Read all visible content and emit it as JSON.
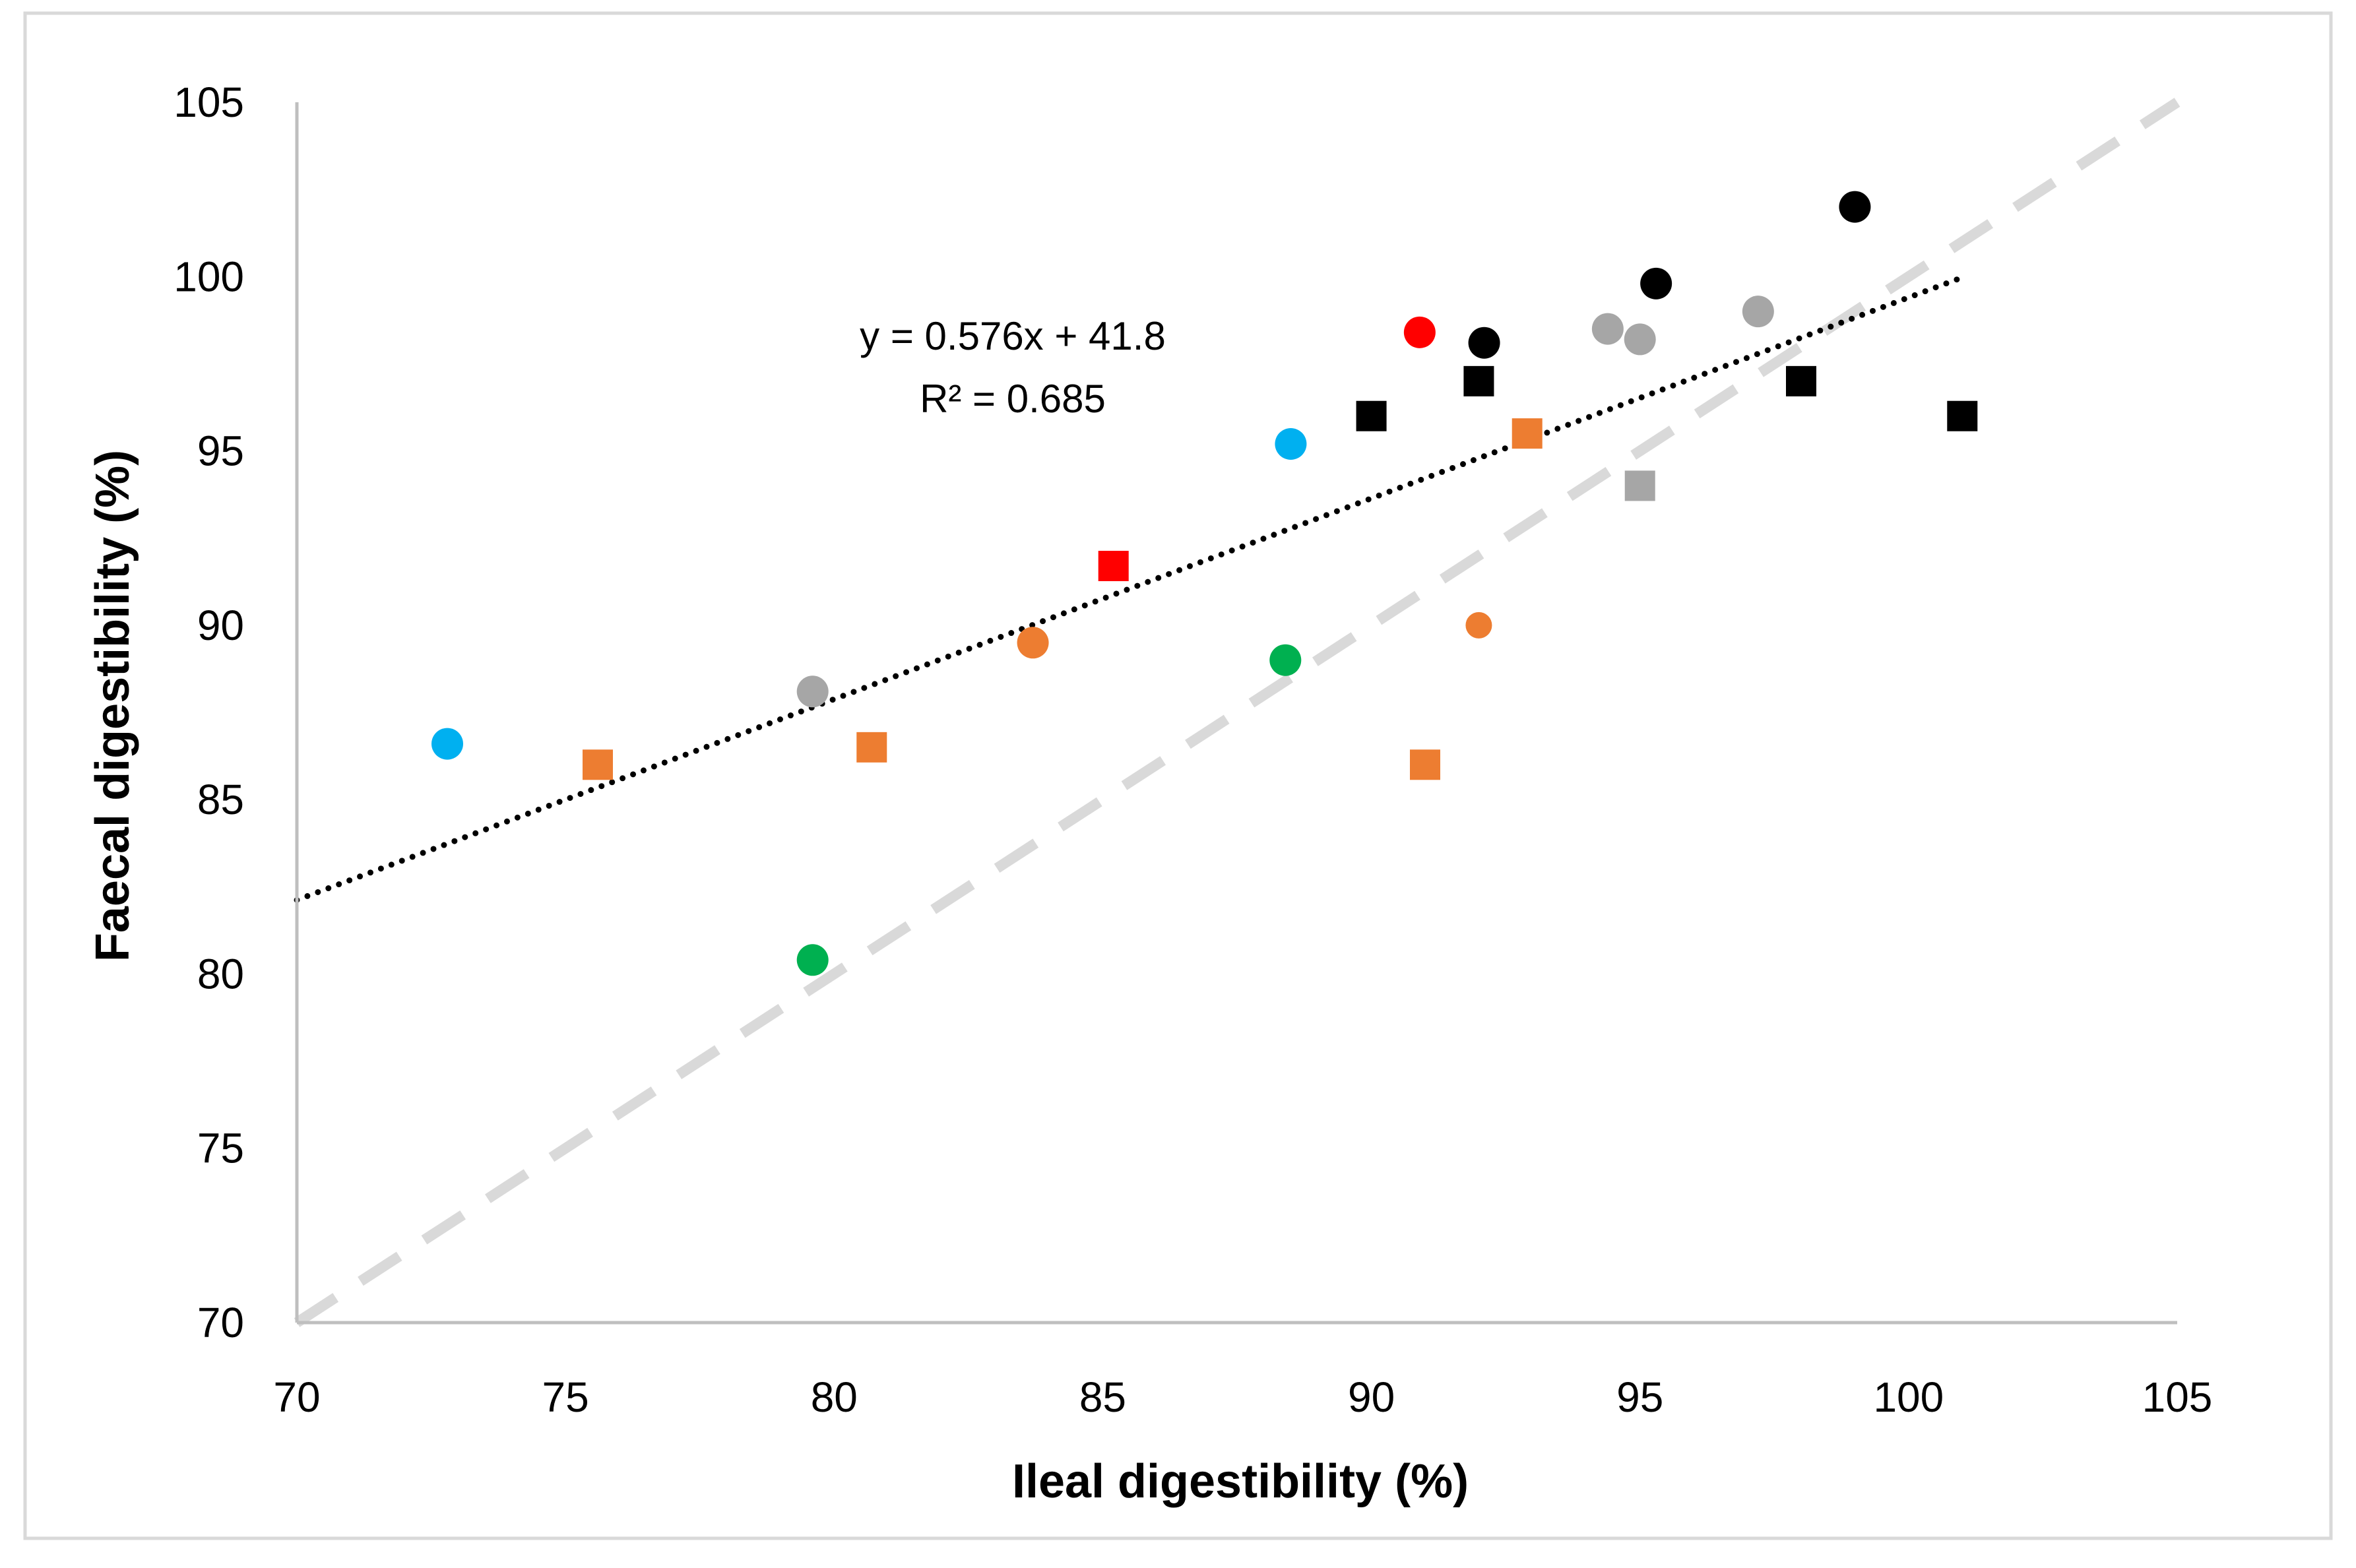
{
  "chart_data": {
    "type": "scatter",
    "title": "",
    "xlabel": "Ileal digestibility (%)",
    "ylabel": "Faecal digestibility (%)",
    "xlim": [
      70,
      105
    ],
    "ylim": [
      70,
      105
    ],
    "xticks": [
      70,
      75,
      80,
      85,
      90,
      95,
      100,
      105
    ],
    "yticks": [
      70,
      75,
      80,
      85,
      90,
      95,
      100,
      105
    ],
    "grid": false,
    "legend": "none",
    "points": [
      {
        "x": 72.8,
        "y": 86.6,
        "marker": "circle",
        "color": "#00B0F0"
      },
      {
        "x": 88.5,
        "y": 95.2,
        "marker": "circle",
        "color": "#00B0F0"
      },
      {
        "x": 79.6,
        "y": 80.4,
        "marker": "circle",
        "color": "#00B050"
      },
      {
        "x": 88.4,
        "y": 89.0,
        "marker": "circle",
        "color": "#00B050"
      },
      {
        "x": 79.6,
        "y": 88.1,
        "marker": "circle",
        "color": "#A6A6A6"
      },
      {
        "x": 94.4,
        "y": 98.5,
        "marker": "circle",
        "color": "#A6A6A6"
      },
      {
        "x": 95.0,
        "y": 98.2,
        "marker": "circle",
        "color": "#A6A6A6"
      },
      {
        "x": 97.2,
        "y": 99.0,
        "marker": "circle",
        "color": "#A6A6A6"
      },
      {
        "x": 83.7,
        "y": 89.5,
        "marker": "circle",
        "color": "#ED7D31"
      },
      {
        "x": 92.0,
        "y": 90.0,
        "marker": "circle-small",
        "color": "#ED7D31"
      },
      {
        "x": 90.9,
        "y": 98.4,
        "marker": "circle",
        "color": "#FF0000"
      },
      {
        "x": 92.1,
        "y": 98.1,
        "marker": "circle",
        "color": "#000000"
      },
      {
        "x": 95.3,
        "y": 99.8,
        "marker": "circle",
        "color": "#000000"
      },
      {
        "x": 99.0,
        "y": 102.0,
        "marker": "circle",
        "color": "#000000"
      },
      {
        "x": 75.6,
        "y": 86.0,
        "marker": "square",
        "color": "#ED7D31"
      },
      {
        "x": 80.7,
        "y": 86.5,
        "marker": "square",
        "color": "#ED7D31"
      },
      {
        "x": 91.0,
        "y": 86.0,
        "marker": "square",
        "color": "#ED7D31"
      },
      {
        "x": 92.9,
        "y": 95.5,
        "marker": "square",
        "color": "#ED7D31"
      },
      {
        "x": 85.2,
        "y": 91.7,
        "marker": "square",
        "color": "#FF0000"
      },
      {
        "x": 95.0,
        "y": 94.0,
        "marker": "square",
        "color": "#A6A6A6"
      },
      {
        "x": 90.0,
        "y": 96.0,
        "marker": "square",
        "color": "#000000"
      },
      {
        "x": 92.0,
        "y": 97.0,
        "marker": "square",
        "color": "#000000"
      },
      {
        "x": 98.0,
        "y": 97.0,
        "marker": "square",
        "color": "#000000"
      },
      {
        "x": 101.0,
        "y": 96.0,
        "marker": "square",
        "color": "#000000"
      }
    ],
    "trendline": {
      "slope": 0.576,
      "intercept": 41.8,
      "x_range": [
        70,
        101
      ],
      "style": "dotted",
      "color": "#000000"
    },
    "identity_line": {
      "x_range": [
        70,
        105
      ],
      "style": "dashed",
      "color": "#D9D9D9"
    },
    "annotations": {
      "equation": "y = 0.576x + 41.8",
      "r_squared": "R² = 0.685"
    }
  }
}
